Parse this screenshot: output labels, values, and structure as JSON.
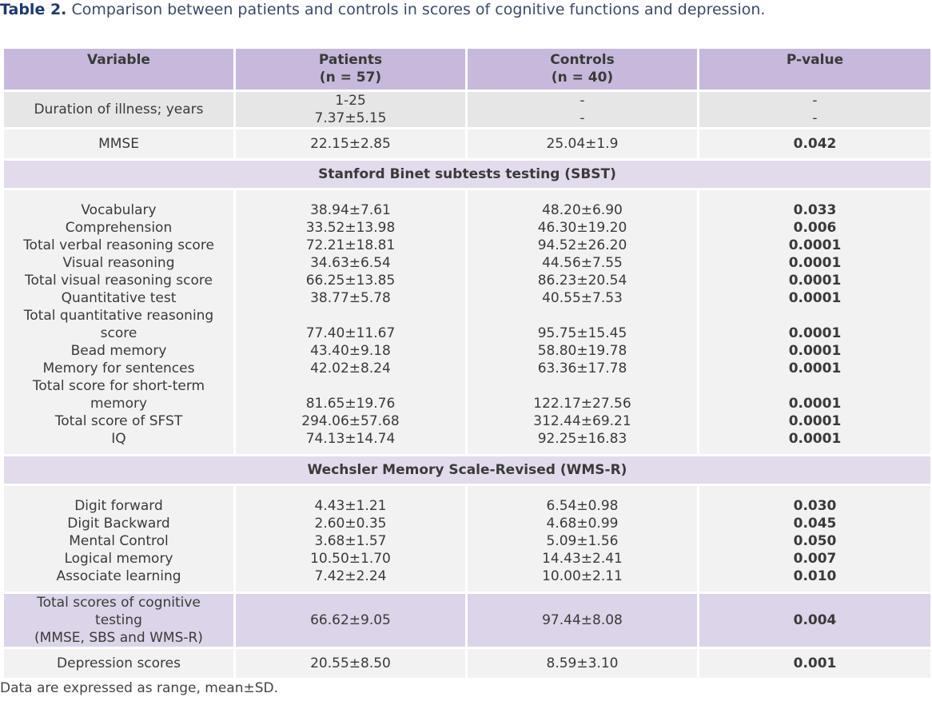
{
  "title": {
    "label": "Table 2.",
    "text": "Comparison between patients and controls in scores of cognitive functions and depression."
  },
  "table": {
    "header": [
      {
        "text": "Variable"
      },
      {
        "text": "Patients",
        "sub": "(n = 57)"
      },
      {
        "text": "Controls",
        "sub": "(n = 40)"
      },
      {
        "text": "P-value"
      }
    ],
    "rows": [
      {
        "cells": [
          [
            "Duration of illness; years"
          ],
          [
            "1-25",
            "7.37±5.15"
          ],
          [
            "-",
            "-"
          ],
          [
            "-",
            "-"
          ]
        ]
      },
      {
        "cells": [
          [
            "MMSE"
          ],
          [
            "22.15±2.85"
          ],
          [
            "25.04±1.9"
          ],
          [
            "0.042"
          ]
        ]
      },
      {
        "section": "Stanford Binet subtests testing (SBST)"
      },
      {
        "items": [
          [
            "Vocabulary",
            "38.94±7.61",
            "48.20±6.90",
            "0.033"
          ],
          [
            "Comprehension",
            "33.52±13.98",
            "46.30±19.20",
            "0.006"
          ],
          [
            "Total verbal reasoning score",
            "72.21±18.81",
            "94.52±26.20",
            "0.0001"
          ],
          [
            "Visual reasoning",
            "34.63±6.54",
            "44.56±7.55",
            "0.0001"
          ],
          [
            "Total visual reasoning score",
            "66.25±13.85",
            "86.23±20.54",
            "0.0001"
          ],
          [
            "Quantitative test",
            "38.77±5.78",
            "40.55±7.53",
            "0.0001"
          ],
          [
            "Total quantitative reasoning score",
            "77.40±11.67",
            "95.75±15.45",
            "0.0001"
          ],
          [
            "Bead memory",
            "43.40±9.18",
            "58.80±19.78",
            "0.0001"
          ],
          [
            "Memory for sentences",
            "42.02±8.24",
            "63.36±17.78",
            "0.0001"
          ],
          [
            "Total score for short-term memory",
            "81.65±19.76",
            "122.17±27.56",
            "0.0001"
          ],
          [
            "Total score of SFST",
            "294.06±57.68",
            "312.44±69.21",
            "0.0001"
          ],
          [
            "IQ",
            "74.13±14.74",
            "92.25±16.83",
            "0.0001"
          ]
        ]
      },
      {
        "section": "Wechsler Memory Scale-Revised (WMS-R)"
      },
      {
        "items": [
          [
            "Digit forward",
            "4.43±1.21",
            "6.54±0.98",
            "0.030"
          ],
          [
            "Digit Backward",
            "2.60±0.35",
            "4.68±0.99",
            "0.045"
          ],
          [
            "Mental Control",
            "3.68±1.57",
            "5.09±1.56",
            "0.050"
          ],
          [
            "Logical memory",
            "10.50±1.70",
            "14.43±2.41",
            "0.007"
          ],
          [
            "Associate learning",
            "7.42±2.24",
            "10.00±2.11",
            "0.010"
          ]
        ]
      },
      {
        "cells": [
          [
            "Total scores of cognitive testing",
            "(MMSE, SBS and WMS-R)"
          ],
          [
            "66.62±9.05"
          ],
          [
            "97.44±8.08"
          ],
          [
            "0.004"
          ]
        ]
      },
      {
        "cells": [
          [
            "Depression scores"
          ],
          [
            "20.55±8.50"
          ],
          [
            "8.59±3.10"
          ],
          [
            "0.001"
          ]
        ]
      }
    ]
  },
  "footnote": "Data are expressed as range, mean±SD."
}
